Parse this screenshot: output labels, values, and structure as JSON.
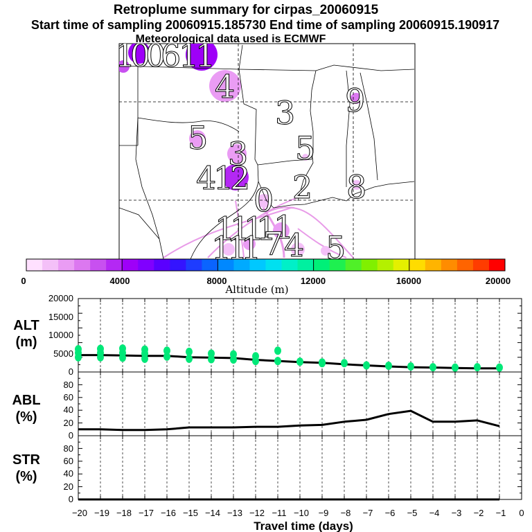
{
  "header": {
    "title": "Retroplume summary for cirpas_20060915",
    "sampling": "Start time of sampling 20060915.185730     End time of sampling 20060915.190917",
    "meteo": "Meteorological data used is ECMWF"
  },
  "map": {
    "labels": [
      "1",
      "0",
      "0",
      "6",
      "1",
      "1",
      "4",
      "3",
      "9",
      "5",
      "3",
      "5",
      "4",
      "1",
      "2",
      "2",
      "8",
      "0",
      "1",
      "1",
      "1",
      "1",
      "1",
      "7",
      "4",
      "1",
      "5",
      "1",
      "1"
    ],
    "plume_color": "#e89be8"
  },
  "colorbar": {
    "tick_labels": [
      "0",
      "4000",
      "8000",
      "12000",
      "16000",
      "20000"
    ],
    "ticks": [
      0,
      4000,
      8000,
      12000,
      16000,
      20000
    ],
    "min": 0,
    "max": 20000,
    "bins": 30,
    "label": "Altitude (m)",
    "colors": [
      "#ffe0ff",
      "#f4c0f8",
      "#ea9cf4",
      "#dc78f0",
      "#c850f0",
      "#b428f4",
      "#9e00f8",
      "#8000ff",
      "#5a00ff",
      "#3414ff",
      "#1e3cff",
      "#0a64ff",
      "#0088ff",
      "#00aaff",
      "#00c8ff",
      "#00e0f0",
      "#00f0c8",
      "#00f0a0",
      "#00f078",
      "#1ef050",
      "#50f028",
      "#80f000",
      "#b4f000",
      "#e4f000",
      "#ffdc00",
      "#ffb400",
      "#ff8c00",
      "#ff6400",
      "#ff3c00",
      "#ff0000"
    ]
  },
  "panels": {
    "alt": {
      "label_line1": "ALT",
      "label_line2": "(m)"
    },
    "abl": {
      "label_line1": "ABL",
      "label_line2": "(%)"
    },
    "str": {
      "label_line1": "STR",
      "label_line2": "(%)"
    },
    "xlabel": "Travel time (days)",
    "x_tick_labels": [
      "−20",
      "−19",
      "−18",
      "−17",
      "−16",
      "−15",
      "−14",
      "−13",
      "−12",
      "−11",
      "−10",
      "−9",
      "−8",
      "−7",
      "−6",
      "−5",
      "−4",
      "−3",
      "−2",
      "−1",
      "0"
    ],
    "alt_tick_labels": [
      "0",
      "5000",
      "10000",
      "15000",
      "20000"
    ],
    "pct_tick_labels": [
      "0",
      "20",
      "40",
      "60",
      "80"
    ]
  },
  "chart_data": [
    {
      "type": "line",
      "title": "ALT",
      "ylabel": "ALT (m)",
      "xlabel": "Travel time (days)",
      "xlim": [
        -20,
        0
      ],
      "ylim": [
        0,
        20000
      ],
      "series": [
        {
          "name": "mean altitude",
          "color": "#000000",
          "x": [
            -20,
            -19,
            -18,
            -17,
            -16,
            -15,
            -14,
            -13,
            -12,
            -11,
            -10,
            -9,
            -8,
            -7,
            -6,
            -5,
            -4,
            -3,
            -2,
            -1
          ],
          "y": [
            4600,
            4600,
            4500,
            4400,
            4400,
            4000,
            3900,
            3800,
            3300,
            3000,
            2700,
            2500,
            2100,
            1800,
            1500,
            1300,
            1200,
            1100,
            1000,
            1000
          ]
        },
        {
          "name": "particle altitudes",
          "type": "scatter",
          "color": "#00e878",
          "x": [
            -20,
            -20,
            -20,
            -19,
            -19,
            -19,
            -18,
            -18,
            -18,
            -17,
            -17,
            -17,
            -16,
            -16,
            -15,
            -15,
            -14,
            -14,
            -13,
            -13,
            -12,
            -12,
            -11,
            -11,
            -10,
            -9,
            -9,
            -8,
            -7,
            -6,
            -5,
            -4,
            -3,
            -2,
            -1
          ],
          "y": [
            6200,
            5200,
            4000,
            6300,
            5200,
            4000,
            6400,
            5200,
            3900,
            6100,
            5000,
            3600,
            5800,
            4200,
            5500,
            3600,
            5000,
            3500,
            4800,
            3400,
            4300,
            3000,
            5800,
            3000,
            2800,
            2600,
            2400,
            2400,
            1800,
            1700,
            1500,
            1300,
            1200,
            1300,
            1200
          ]
        }
      ]
    },
    {
      "type": "line",
      "title": "ABL",
      "ylabel": "ABL (%)",
      "xlim": [
        -20,
        0
      ],
      "ylim": [
        0,
        100
      ],
      "series": [
        {
          "name": "ABL fraction",
          "color": "#000000",
          "x": [
            -20,
            -19,
            -18,
            -17,
            -16,
            -15,
            -14,
            -13,
            -12,
            -11,
            -10,
            -9,
            -8,
            -7,
            -6,
            -5,
            -4,
            -3,
            -2,
            -1
          ],
          "y": [
            10,
            10,
            9,
            9,
            10,
            13,
            13,
            13,
            14,
            14,
            16,
            17,
            22,
            25,
            34,
            39,
            22,
            22,
            24,
            15
          ]
        }
      ]
    },
    {
      "type": "line",
      "title": "STR",
      "ylabel": "STR (%)",
      "xlim": [
        -20,
        0
      ],
      "ylim": [
        0,
        100
      ],
      "series": [
        {
          "name": "STR fraction",
          "color": "#000000",
          "x": [
            -20,
            -19,
            -18,
            -17,
            -16,
            -15,
            -14,
            -13,
            -12,
            -11,
            -10,
            -9,
            -8,
            -7,
            -6,
            -5,
            -4,
            -3,
            -2,
            -1
          ],
          "y": [
            0,
            0,
            0,
            0,
            0,
            0,
            0,
            0,
            0,
            0,
            0,
            0,
            0,
            0,
            0,
            0,
            0,
            0,
            0,
            0
          ]
        }
      ]
    }
  ]
}
